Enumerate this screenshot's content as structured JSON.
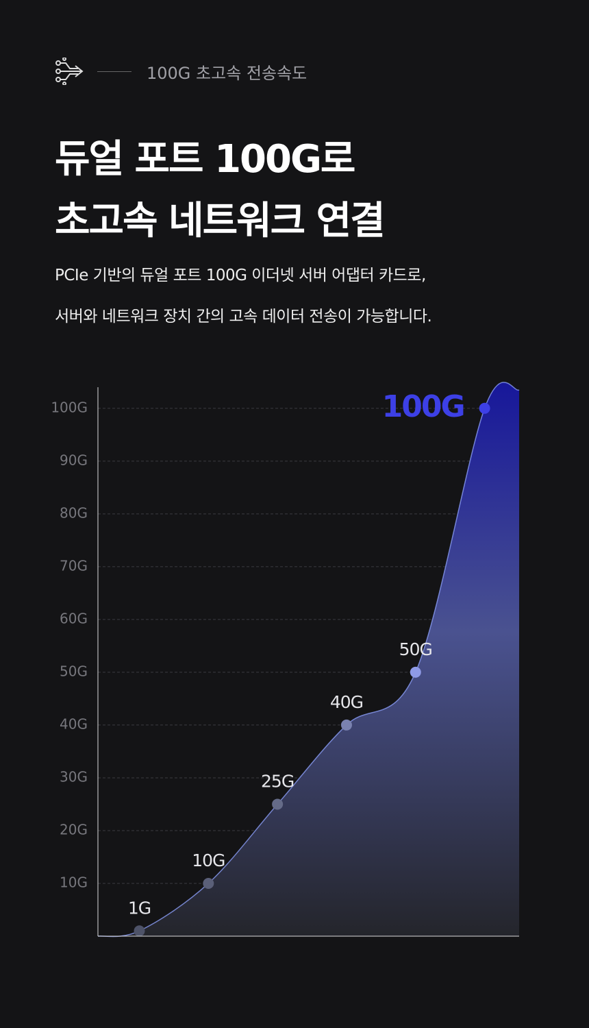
{
  "header": {
    "eyebrow": "100G 초고속 전송속도",
    "title": [
      "듀얼 포트 100G로",
      "초고속 네트워크 연결"
    ],
    "description": [
      "PCIe 기반의 듀얼 포트 100G 이더넷 서버 어댑터 카드로,",
      "서버와 네트워크 장치 간의 고속 데이터 전송이 가능합니다."
    ]
  },
  "chart_data": {
    "type": "area",
    "x": [
      1,
      2,
      3,
      4,
      5,
      6
    ],
    "values": [
      1,
      10,
      25,
      40,
      50,
      100
    ],
    "value_labels": [
      "1G",
      "10G",
      "25G",
      "40G",
      "50G",
      "100G"
    ],
    "point_colors": [
      "#4e5368",
      "#5a5f78",
      "#656b88",
      "#7a82b0",
      "#8e9ae6",
      "#3d40e6"
    ],
    "color": "#8a9cf5",
    "fill_top": "#17179a",
    "fill_bottom": "#24252b",
    "xlim": [
      0.4,
      6.5
    ],
    "ylim": [
      0,
      104
    ],
    "yticks": [
      {
        "value": 10,
        "label": "10G"
      },
      {
        "value": 20,
        "label": "20G"
      },
      {
        "value": 30,
        "label": "30G"
      },
      {
        "value": 40,
        "label": "40G"
      },
      {
        "value": 50,
        "label": "50G"
      },
      {
        "value": 60,
        "label": "60G"
      },
      {
        "value": 70,
        "label": "70G"
      },
      {
        "value": 80,
        "label": "80G"
      },
      {
        "value": 90,
        "label": "90G"
      },
      {
        "value": 100,
        "label": "100G"
      }
    ],
    "grid": true
  }
}
